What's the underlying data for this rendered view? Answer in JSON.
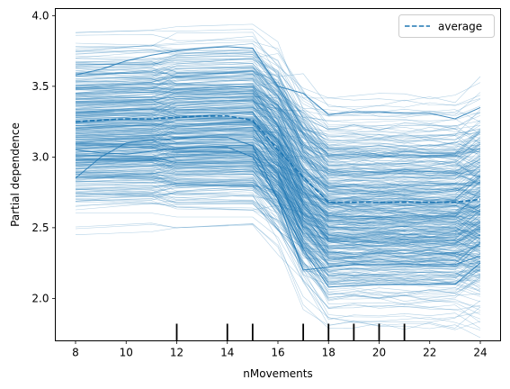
{
  "chart_data": {
    "type": "line",
    "subtype": "ice-partial-dependence",
    "title": "",
    "xlabel": "nMovements",
    "ylabel": "Partial dependence",
    "xlim": [
      7.2,
      24.8
    ],
    "ylim": [
      1.7,
      4.05
    ],
    "xticks": [
      8,
      10,
      12,
      14,
      16,
      18,
      20,
      22,
      24
    ],
    "xtick_labels": [
      "8",
      "10",
      "12",
      "14",
      "16",
      "18",
      "20",
      "22",
      "24"
    ],
    "yticks": [
      2.0,
      2.5,
      3.0,
      3.5,
      4.0
    ],
    "ytick_labels": [
      "2.0",
      "2.5",
      "3.0",
      "3.5",
      "4.0"
    ],
    "x_grid": [
      8,
      9,
      10,
      11,
      12,
      13,
      14,
      15,
      16,
      17,
      18,
      19,
      20,
      21,
      22,
      23,
      24
    ],
    "deciles": [
      12,
      14,
      15,
      17,
      18,
      19,
      20,
      21
    ],
    "average": {
      "name": "average",
      "values": [
        3.25,
        3.26,
        3.27,
        3.27,
        3.28,
        3.29,
        3.29,
        3.26,
        3.05,
        2.86,
        2.68,
        2.68,
        2.68,
        2.68,
        2.68,
        2.68,
        2.7
      ]
    },
    "ice_samples": 460,
    "ice_range_at_x8": [
      2.45,
      3.88
    ],
    "ice_range_at_x18": [
      1.8,
      3.45
    ],
    "series_color": "#1f77b4",
    "legend": {
      "entries": [
        "average"
      ],
      "position": "upper-right"
    }
  }
}
